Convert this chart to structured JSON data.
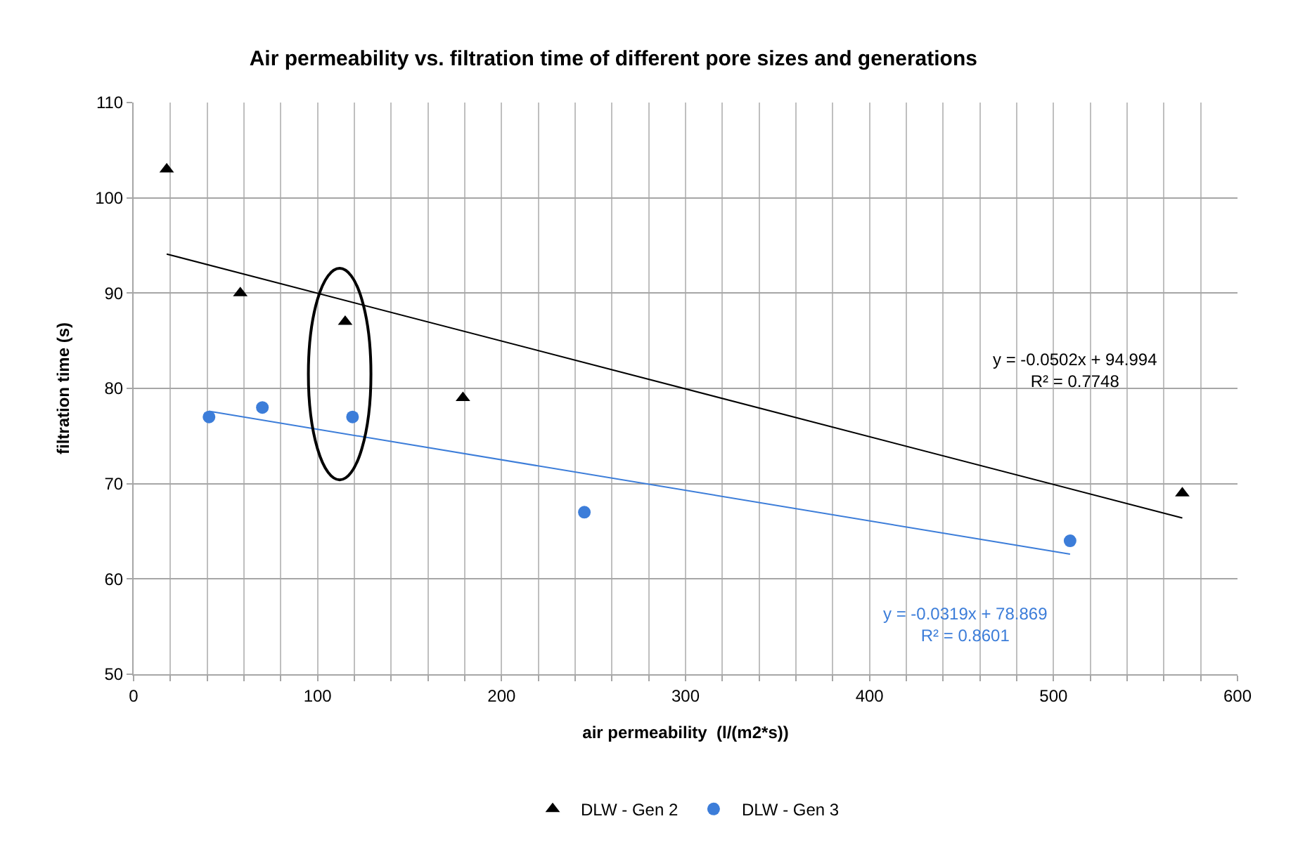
{
  "chart_data": {
    "type": "scatter",
    "title": "Air permeability vs. filtration time of different pore sizes and generations",
    "xlabel": "air permeability  (l/(m2*s))",
    "ylabel": "filtration time (s)",
    "xlim": [
      0,
      600
    ],
    "ylim": [
      50,
      110
    ],
    "xticks": [
      0,
      {
        "value": 20,
        "label": null
      },
      {
        "value": 40,
        "label": null
      },
      {
        "value": 60,
        "label": null
      },
      {
        "value": 80,
        "label": null
      },
      100,
      {
        "value": 120,
        "label": null
      },
      {
        "value": 140,
        "label": null
      },
      {
        "value": 160,
        "label": null
      },
      {
        "value": 180,
        "label": null
      },
      200,
      {
        "value": 220,
        "label": null
      },
      {
        "value": 240,
        "label": null
      },
      {
        "value": 260,
        "label": null
      },
      {
        "value": 280,
        "label": null
      },
      300,
      {
        "value": 320,
        "label": null
      },
      {
        "value": 340,
        "label": null
      },
      {
        "value": 360,
        "label": null
      },
      {
        "value": 380,
        "label": null
      },
      400,
      {
        "value": 420,
        "label": null
      },
      {
        "value": 440,
        "label": null
      },
      {
        "value": 460,
        "label": null
      },
      {
        "value": 480,
        "label": null
      },
      500,
      {
        "value": 520,
        "label": null
      },
      {
        "value": 540,
        "label": null
      },
      {
        "value": 560,
        "label": null
      },
      {
        "value": 580,
        "label": null
      },
      600
    ],
    "yticks": [
      50,
      60,
      70,
      80,
      90,
      100,
      110
    ],
    "grid": true,
    "legend": "bottom",
    "series": [
      {
        "name": "DLW - Gen 2",
        "color": "#000000",
        "marker": "triangle",
        "x": [
          18,
          58,
          115,
          179,
          570
        ],
        "values": [
          103,
          90,
          87,
          79,
          69
        ]
      },
      {
        "name": "DLW - Gen 3",
        "color": "#3c7dd9",
        "marker": "circle",
        "x": [
          41,
          70,
          119,
          245,
          509
        ],
        "values": [
          77,
          78,
          77,
          67,
          64
        ]
      },
      {
        "type": "line",
        "color": "#000000",
        "marker": "none",
        "x": [
          18,
          570
        ],
        "values": [
          94.1,
          66.4
        ]
      },
      {
        "type": "line",
        "color": "#3c7dd9",
        "marker": "none",
        "x": [
          41,
          509
        ],
        "values": [
          77.6,
          62.6
        ]
      }
    ],
    "annotations": [
      "y = -0.0502x + 94.994\nR² = 0.7748",
      "y = -0.0319x + 78.869\nR² = 0.8601"
    ]
  }
}
